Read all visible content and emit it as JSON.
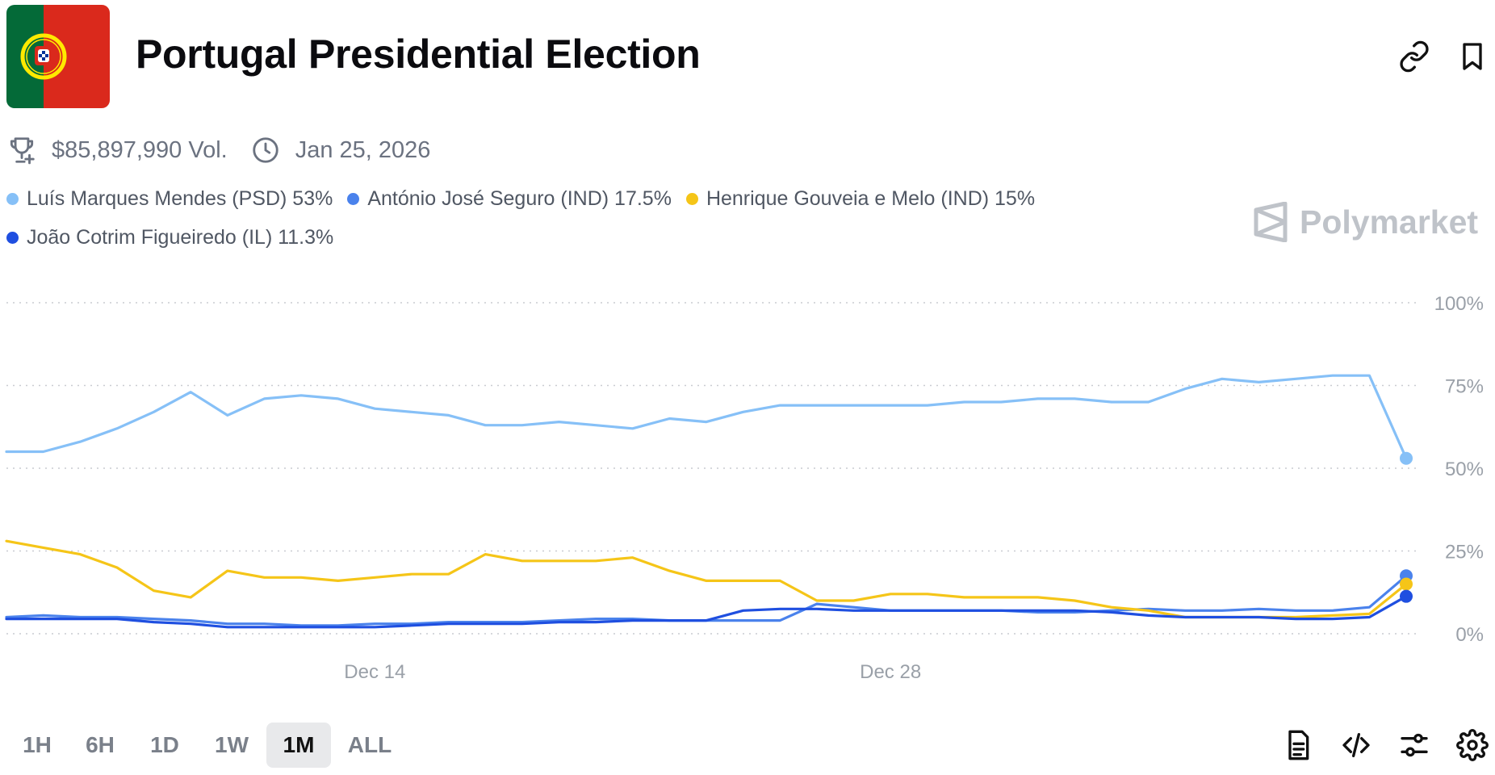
{
  "header": {
    "title": "Portugal Presidential Election",
    "volume": "$85,897,990 Vol.",
    "end_date": "Jan 25, 2026"
  },
  "brand": {
    "name": "Polymarket"
  },
  "icons": {
    "flag": "portugal-flag-icon",
    "link": "link-icon",
    "bookmark": "bookmark-icon",
    "trophy": "trophy-icon",
    "clock": "clock-icon",
    "brand": "polymarket-logo-icon",
    "document": "document-icon",
    "embed": "code-icon",
    "filters": "sliders-icon",
    "settings": "gear-icon"
  },
  "legend": [
    {
      "label": "Luís Marques Mendes (PSD) 53%",
      "color": "#86c0f7"
    },
    {
      "label": "António José Seguro (IND) 17.5%",
      "color": "#4a82ec"
    },
    {
      "label": "Henrique Gouveia e Melo (IND) 15%",
      "color": "#f5c518"
    },
    {
      "label": "João Cotrim Figueiredo (IL) 11.3%",
      "color": "#1f4fe0"
    }
  ],
  "time_ranges": [
    "1H",
    "6H",
    "1D",
    "1W",
    "1M",
    "ALL"
  ],
  "active_range": "1M",
  "chart_data": {
    "type": "line",
    "x_domain": [
      "Dec 4",
      "Jan 11"
    ],
    "x_ticks": [
      "Dec 14",
      "Dec 28"
    ],
    "y_ticks": [
      "0%",
      "25%",
      "50%",
      "75%",
      "100%"
    ],
    "ylim": [
      0,
      100
    ],
    "grid": true,
    "x": [
      "Dec 4",
      "Dec 5",
      "Dec 6",
      "Dec 7",
      "Dec 8",
      "Dec 9",
      "Dec 10",
      "Dec 11",
      "Dec 12",
      "Dec 13",
      "Dec 14",
      "Dec 15",
      "Dec 16",
      "Dec 17",
      "Dec 18",
      "Dec 19",
      "Dec 20",
      "Dec 21",
      "Dec 22",
      "Dec 23",
      "Dec 24",
      "Dec 25",
      "Dec 26",
      "Dec 27",
      "Dec 28",
      "Dec 29",
      "Dec 30",
      "Dec 31",
      "Jan 1",
      "Jan 2",
      "Jan 3",
      "Jan 4",
      "Jan 5",
      "Jan 6",
      "Jan 7",
      "Jan 8",
      "Jan 9",
      "Jan 10",
      "Jan 11"
    ],
    "series": [
      {
        "name": "Luís Marques Mendes (PSD)",
        "color": "#86c0f7",
        "values": [
          55,
          55,
          58,
          62,
          67,
          73,
          66,
          71,
          72,
          71,
          68,
          67,
          66,
          63,
          63,
          64,
          63,
          62,
          65,
          64,
          67,
          69,
          69,
          69,
          69,
          69,
          70,
          70,
          71,
          71,
          70,
          70,
          74,
          77,
          76,
          77,
          78,
          78,
          53
        ]
      },
      {
        "name": "António José Seguro (IND)",
        "color": "#4a82ec",
        "values": [
          5,
          5.5,
          5,
          5,
          4.5,
          4,
          3,
          3,
          2.5,
          2.5,
          3,
          3,
          3.5,
          3.5,
          3.5,
          4,
          4.5,
          4.5,
          4,
          4,
          4,
          4,
          9,
          8,
          7,
          7,
          7,
          7,
          6.5,
          6.5,
          7,
          7.5,
          7,
          7,
          7.5,
          7,
          7,
          8,
          17.5
        ]
      },
      {
        "name": "Henrique Gouveia e Melo (IND)",
        "color": "#f5c518",
        "values": [
          28,
          26,
          24,
          20,
          13,
          11,
          19,
          17,
          17,
          16,
          17,
          18,
          18,
          24,
          22,
          22,
          22,
          23,
          19,
          16,
          16,
          16,
          10,
          10,
          12,
          12,
          11,
          11,
          11,
          10,
          8,
          7,
          5,
          5,
          5,
          5,
          5.5,
          6,
          15
        ]
      },
      {
        "name": "João Cotrim Figueiredo (IL)",
        "color": "#1f4fe0",
        "values": [
          4.5,
          4.5,
          4.5,
          4.5,
          3.5,
          3,
          2,
          2,
          2,
          2,
          2,
          2.5,
          3,
          3,
          3,
          3.5,
          3.5,
          4,
          4,
          4,
          7,
          7.5,
          7.5,
          7,
          7,
          7,
          7,
          7,
          7,
          7,
          6.5,
          5.5,
          5,
          5,
          5,
          4.5,
          4.5,
          5,
          11.3
        ]
      }
    ]
  }
}
